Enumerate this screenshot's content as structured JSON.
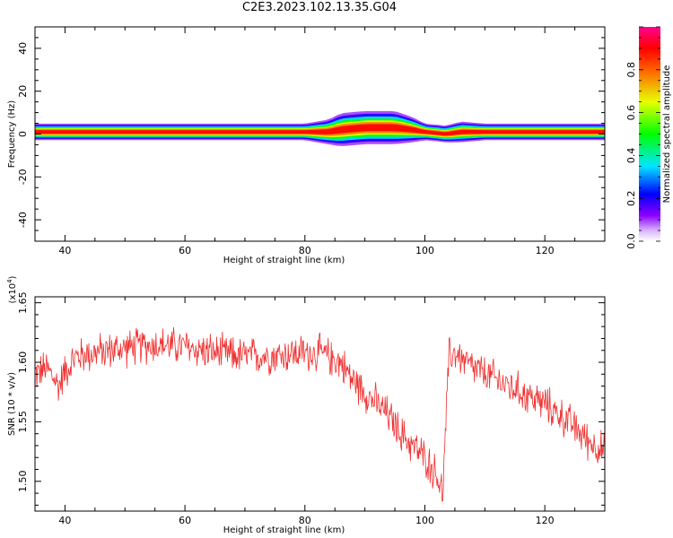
{
  "title": "C2E3.2023.102.13.35.G04",
  "chart_data": [
    {
      "type": "heatmap",
      "xlabel": "Height of straight line (km)",
      "ylabel": "Frequency (Hz)",
      "xlim": [
        35,
        130
      ],
      "ylim": [
        -50,
        50
      ],
      "xticks": [
        40,
        60,
        80,
        100,
        120
      ],
      "xtick_labels": [
        "40",
        "60",
        "80",
        "100",
        "120"
      ],
      "yticks": [
        -40,
        -20,
        0,
        20,
        40
      ],
      "ytick_labels": [
        "-40",
        "-20",
        "0",
        "20",
        "40"
      ],
      "colorbar": {
        "label": "Normalized spectral amplitude",
        "range": [
          0.0,
          1.0
        ],
        "ticks": [
          0.0,
          0.2,
          0.4,
          0.6,
          0.8
        ],
        "tick_labels": [
          "0.0",
          "0.2",
          "0.4",
          "0.6",
          "0.8"
        ],
        "colormap": "rainbow (white-violet-blue-cyan-green-yellow-red-magenta)"
      },
      "ridge": {
        "height_km": [
          35,
          40,
          50,
          60,
          70,
          80,
          84,
          86,
          90,
          95,
          98,
          100,
          102,
          103.5,
          106,
          110,
          120,
          130
        ],
        "peak_frequency_hz": [
          1,
          1,
          1,
          1,
          1,
          1,
          1,
          2,
          3,
          3,
          2,
          1,
          0.5,
          0,
          1,
          1,
          1,
          1
        ],
        "half_width_hz": [
          2,
          2,
          2,
          2,
          2,
          2,
          3,
          4,
          4,
          4,
          3,
          2,
          2,
          2,
          2.5,
          2,
          2,
          2
        ]
      }
    },
    {
      "type": "line",
      "xlabel": "Height of straight line (km)",
      "ylabel": "SNR (10 * v/v)",
      "y_multiplier_label": "(x10",
      "y_multiplier_exponent": "4",
      "y_multiplier_close": ")",
      "xlim": [
        35,
        130
      ],
      "ylim": [
        1.475,
        1.655
      ],
      "xticks": [
        40,
        60,
        80,
        100,
        120
      ],
      "xtick_labels": [
        "40",
        "60",
        "80",
        "100",
        "120"
      ],
      "yticks": [
        1.5,
        1.55,
        1.6,
        1.65
      ],
      "ytick_labels": [
        "1.50",
        "1.55",
        "1.60",
        "1.65"
      ],
      "color": "#f03030",
      "series": [
        {
          "x": [
            35,
            37,
            39,
            40,
            42,
            45,
            50,
            55,
            60,
            65,
            70,
            75,
            80,
            83,
            86,
            88,
            90,
            92,
            94,
            96,
            98,
            100,
            102,
            103,
            104,
            105,
            108,
            112,
            116,
            120,
            124,
            127,
            130
          ],
          "y": [
            1.59,
            1.595,
            1.58,
            1.593,
            1.605,
            1.608,
            1.612,
            1.615,
            1.613,
            1.608,
            1.605,
            1.606,
            1.608,
            1.607,
            1.6,
            1.585,
            1.575,
            1.565,
            1.555,
            1.54,
            1.53,
            1.52,
            1.505,
            1.49,
            1.605,
            1.608,
            1.595,
            1.585,
            1.575,
            1.565,
            1.55,
            1.535,
            1.525
          ],
          "noise_amplitude": 0.016
        }
      ]
    }
  ]
}
